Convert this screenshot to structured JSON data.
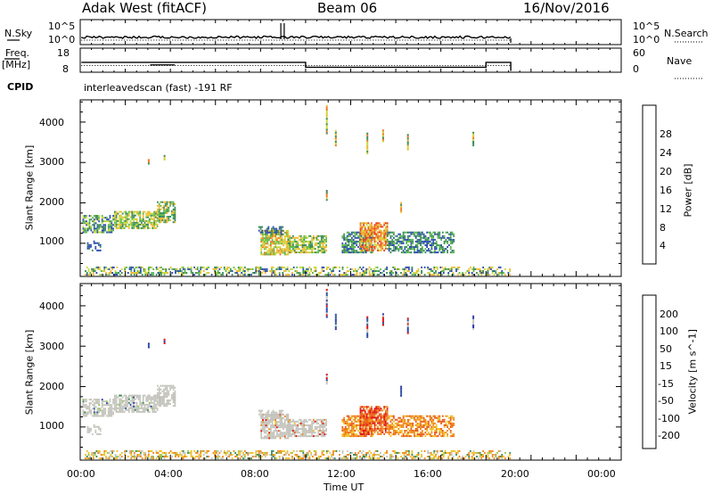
{
  "header": {
    "station": "Adak West (fitACF)",
    "beam": "Beam 06",
    "date": "16/Nov/2016"
  },
  "top_panel": {
    "left_label": "N.Sky",
    "right_label": "N.Search",
    "left_ticks": [
      "10^5",
      "10^0"
    ],
    "right_ticks": [
      "10^5",
      "10^0"
    ]
  },
  "freq_panel": {
    "left_label_1": "Freq.",
    "left_label_2": "[MHz]",
    "right_label": "Nave",
    "left_ticks": [
      "18",
      "8"
    ],
    "right_ticks": [
      "60",
      "0"
    ]
  },
  "cpid": {
    "label": "CPID",
    "text": "interleavedscan (fast) -191 RF"
  },
  "colors": {
    "power": [
      "#1010e0",
      "#2c4cb0",
      "#3a8a58",
      "#5cb84c",
      "#c8d838",
      "#f0b830",
      "#f07820",
      "#f03818",
      "#e01010"
    ],
    "velocity_pos": [
      "#2a3aa8",
      "#2c5aa0",
      "#3a8a58",
      "#8cc84c"
    ],
    "velocity_gs": "#c4c4bc",
    "velocity_neg": [
      "#f0c020",
      "#f08818",
      "#e85818",
      "#e01010"
    ]
  },
  "chart_data": [
    {
      "type": "heatmap",
      "name": "power",
      "ylabel": "Slant Range [km]",
      "yticks": [
        "1000",
        "2000",
        "3000",
        "4000"
      ],
      "ytick_values": [
        1000,
        2000,
        3000,
        4000
      ],
      "ylim": [
        180,
        4550
      ],
      "xlim": [
        0,
        24
      ],
      "colorbar": {
        "label": "Power [dB]",
        "ticks": [
          "4",
          "8",
          "12",
          "16",
          "20",
          "24",
          "28"
        ],
        "range": [
          0,
          32
        ]
      },
      "regions": [
        {
          "t0": 0.1,
          "t1": 4.2,
          "r0": 1250,
          "r1": 1800,
          "level": 11
        },
        {
          "t0": 7.9,
          "t1": 10.9,
          "r0": 700,
          "r1": 1400,
          "level": 14
        },
        {
          "t0": 11.5,
          "t1": 16.6,
          "r0": 700,
          "r1": 1400,
          "level": 13
        },
        {
          "t0": 0.2,
          "t1": 19.1,
          "r0": 200,
          "r1": 450,
          "level": 10
        }
      ]
    },
    {
      "type": "heatmap",
      "name": "velocity",
      "ylabel": "Slant Range [km]",
      "yticks": [
        "1000",
        "2000",
        "3000",
        "4000"
      ],
      "ytick_values": [
        1000,
        2000,
        3000,
        4000
      ],
      "ylim": [
        180,
        4550
      ],
      "xlim": [
        0,
        24
      ],
      "colorbar": {
        "label": "Velocity [m s^-1]",
        "ticks": [
          "200",
          "100",
          "50",
          "15",
          "-15",
          "-50",
          "-100",
          "-200"
        ]
      },
      "xticks": [
        "00:00",
        "04:00",
        "08:00",
        "12:00",
        "16:00",
        "20:00",
        "00:00"
      ],
      "xtick_values": [
        0,
        4,
        8,
        12,
        16,
        20,
        24
      ],
      "xlabel": "Time UT"
    }
  ]
}
